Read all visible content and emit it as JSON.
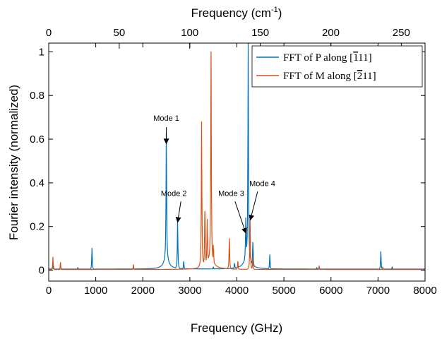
{
  "chart_data": {
    "type": "line",
    "xlabel": "Frequency (GHz)",
    "x2label": "Frequency (cm",
    "x2label_sup": "-1",
    "x2label_close": ")",
    "ylabel": "Fourier intensity (normalized)",
    "xlim": [
      0,
      8000
    ],
    "x2lim": [
      0,
      266.86
    ],
    "ylim": [
      -0.05,
      1.04
    ],
    "xticks": [
      0,
      1000,
      2000,
      3000,
      4000,
      5000,
      6000,
      7000,
      8000
    ],
    "x2ticks": [
      0,
      50,
      100,
      150,
      200,
      250
    ],
    "yticks": [
      0,
      0.2,
      0.4,
      0.6,
      0.8,
      1
    ],
    "ytick_labels": [
      "0",
      "0.2",
      "0.4",
      "0.6",
      "0.8",
      "1"
    ],
    "legend_position": "top-right",
    "series": [
      {
        "name": "FFT of P along [̅111]",
        "legend_parts": [
          "FFT of P along [",
          "1",
          "11]"
        ],
        "color": "#0072BD",
        "baseline": 0.005,
        "broad_peaks": [
          {
            "x": 2500,
            "h": 0.05,
            "w": 70
          },
          {
            "x": 4220,
            "h": 0.06,
            "w": 80
          }
        ],
        "peaks": [
          {
            "x": 90,
            "h": 0.02
          },
          {
            "x": 620,
            "h": 0.012
          },
          {
            "x": 920,
            "h": 0.1
          },
          {
            "x": 2500,
            "h": 0.59
          },
          {
            "x": 2740,
            "h": 0.22
          },
          {
            "x": 2870,
            "h": 0.04
          },
          {
            "x": 3500,
            "h": 0.015
          },
          {
            "x": 3950,
            "h": 0.03
          },
          {
            "x": 4190,
            "h": 0.21
          },
          {
            "x": 4240,
            "h": 1.0
          },
          {
            "x": 4340,
            "h": 0.12
          },
          {
            "x": 4700,
            "h": 0.07
          },
          {
            "x": 5700,
            "h": 0.012
          },
          {
            "x": 7060,
            "h": 0.085
          },
          {
            "x": 7300,
            "h": 0.015
          }
        ]
      },
      {
        "name": "FFT of M along [̅211]",
        "legend_parts": [
          "FFT of M along [",
          "2",
          "11]"
        ],
        "color": "#D95319",
        "baseline": 0.003,
        "broad_peaks": [
          {
            "x": 3420,
            "h": 0.04,
            "w": 120
          }
        ],
        "peaks": [
          {
            "x": 90,
            "h": 0.06
          },
          {
            "x": 250,
            "h": 0.035
          },
          {
            "x": 1800,
            "h": 0.025
          },
          {
            "x": 3250,
            "h": 0.67
          },
          {
            "x": 3320,
            "h": 0.27
          },
          {
            "x": 3370,
            "h": 0.2
          },
          {
            "x": 3450,
            "h": 1.0
          },
          {
            "x": 3500,
            "h": 0.1
          },
          {
            "x": 3840,
            "h": 0.145
          },
          {
            "x": 4020,
            "h": 0.04
          },
          {
            "x": 4280,
            "h": 0.245
          },
          {
            "x": 4340,
            "h": 0.06
          },
          {
            "x": 5750,
            "h": 0.02
          },
          {
            "x": 7100,
            "h": 0.015
          }
        ]
      }
    ],
    "annotations": [
      {
        "label": "Mode 1",
        "tip": [
          2500,
          0.58
        ],
        "text_at": [
          2500,
          0.685
        ],
        "tail": [
          2500,
          0.655
        ]
      },
      {
        "label": "Mode 2",
        "tip": [
          2740,
          0.22
        ],
        "text_at": [
          2660,
          0.34
        ],
        "tail": [
          2810,
          0.315
        ]
      },
      {
        "label": "Mode 3",
        "tip": [
          4190,
          0.17
        ],
        "text_at": [
          3880,
          0.34
        ],
        "tail": [
          3960,
          0.315
        ]
      },
      {
        "label": "Mode 4",
        "tip": [
          4285,
          0.23
        ],
        "text_at": [
          4540,
          0.385
        ],
        "tail": [
          4440,
          0.36
        ]
      }
    ]
  }
}
